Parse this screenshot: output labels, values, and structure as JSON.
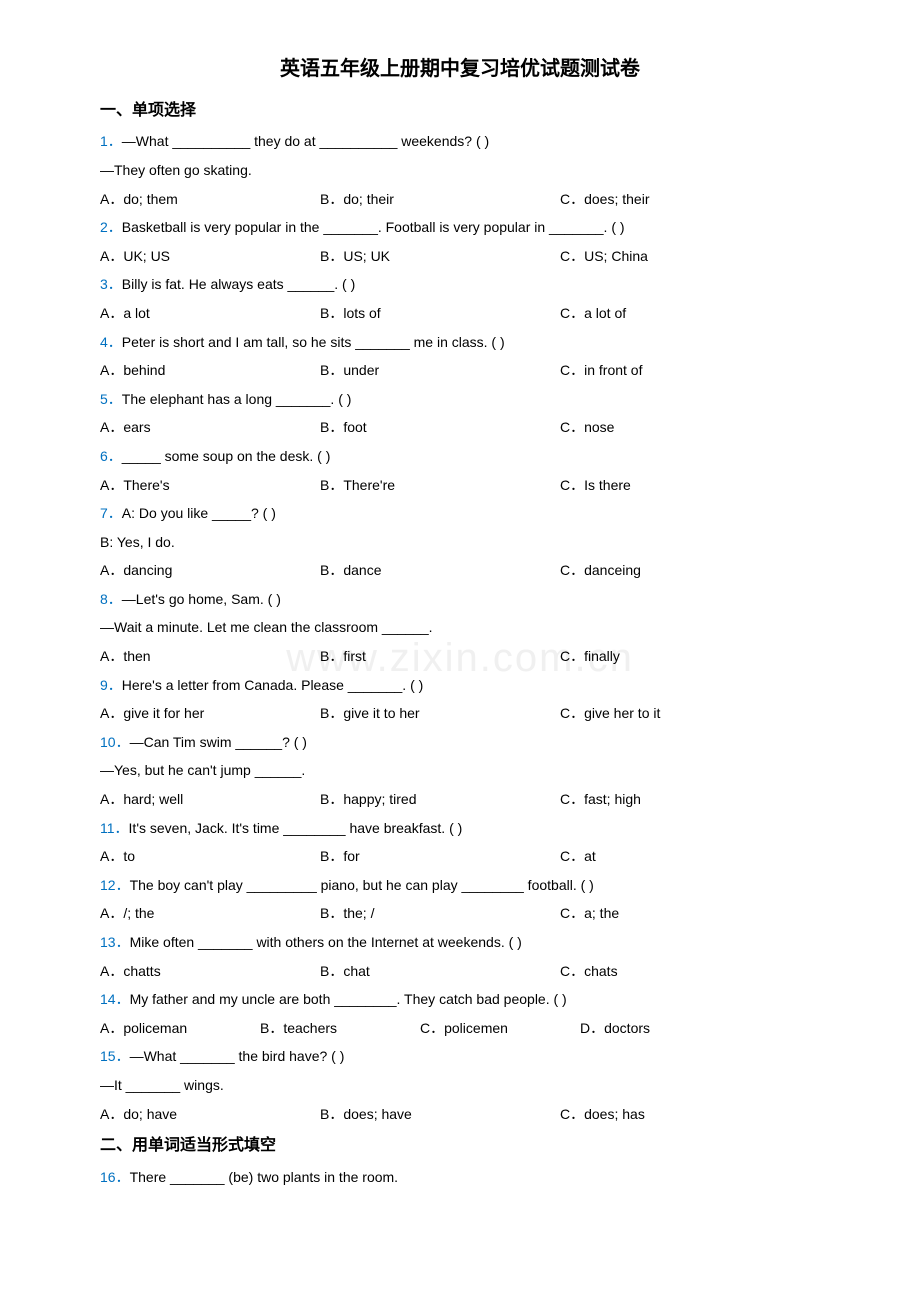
{
  "title": "英语五年级上册期中复习培优试题测试卷",
  "watermark": "www.zixin.com.cn",
  "section1": {
    "header": "一、单项选择",
    "questions": [
      {
        "num": "1．",
        "text": "—What __________ they do at __________ weekends? (    )",
        "extra": "—They often go skating.",
        "options": [
          "A．do; them",
          "B．do; their",
          "C．does; their"
        ]
      },
      {
        "num": "2．",
        "text": "Basketball is very popular in the _______. Football is very popular in _______. (    )",
        "options": [
          "A．UK; US",
          "B．US; UK",
          "C．US; China"
        ]
      },
      {
        "num": "3．",
        "text": "Billy is fat. He always eats ______. (    )",
        "options": [
          "A．a lot",
          "B．lots of",
          "C．a lot of"
        ]
      },
      {
        "num": "4．",
        "text": "Peter is short and I am tall, so he sits _______ me in class. (     )",
        "options": [
          "A．behind",
          "B．under",
          "C．in front of"
        ]
      },
      {
        "num": "5．",
        "text": "The elephant has a long _______. (    )",
        "options": [
          "A．ears",
          "B．foot",
          "C．nose"
        ]
      },
      {
        "num": "6．",
        "text": "_____ some soup on the desk. (    )",
        "options": [
          "A．There's",
          "B．There're",
          "C．Is there"
        ]
      },
      {
        "num": "7．",
        "text": "A: Do you like _____? (     )",
        "extra": "B: Yes, I do.",
        "options": [
          "A．dancing",
          "B．dance",
          "C．danceing"
        ]
      },
      {
        "num": "8．",
        "text": "—Let's go home, Sam. (    )",
        "extra": "—Wait a minute. Let me clean the classroom ______.",
        "options": [
          "A．then",
          "B．first",
          "C．finally"
        ]
      },
      {
        "num": "9．",
        "text": "Here's a letter from Canada. Please _______. (    )",
        "options": [
          "A．give it for her",
          "B．give it to her",
          "C．give her to it"
        ]
      },
      {
        "num": "10．",
        "text": "—Can Tim swim ______? (    )",
        "extra": "—Yes, but he can't jump ______.",
        "options": [
          "A．hard; well",
          "B．happy; tired",
          "C．fast; high"
        ]
      },
      {
        "num": "11．",
        "text": "It's seven, Jack. It's time ________ have breakfast. (      )",
        "options": [
          "A．to",
          "B．for",
          "C．at"
        ]
      },
      {
        "num": "12．",
        "text": "The boy can't play _________ piano, but he can play ________ football. (    )",
        "options": [
          "A．/; the",
          "B．the; /",
          "C．a; the"
        ]
      },
      {
        "num": "13．",
        "text": "Mike often _______ with others on the Internet at weekends. (    )",
        "options": [
          "A．chatts",
          "B．chat",
          "C．chats"
        ]
      },
      {
        "num": "14．",
        "text": "My father and my uncle are both ________. They catch bad people. (    )",
        "options4": [
          "A．policeman",
          "B．teachers",
          "C．policemen",
          "D．doctors"
        ]
      },
      {
        "num": "15．",
        "text": "—What _______ the bird have? (    )",
        "extra": "—It _______ wings.",
        "options": [
          "A．do; have",
          "B．does; have",
          "C．does; has"
        ]
      }
    ]
  },
  "section2": {
    "header": "二、用单词适当形式填空",
    "questions": [
      {
        "num": "16．",
        "text": "There _______ (be) two plants in the room."
      }
    ]
  }
}
